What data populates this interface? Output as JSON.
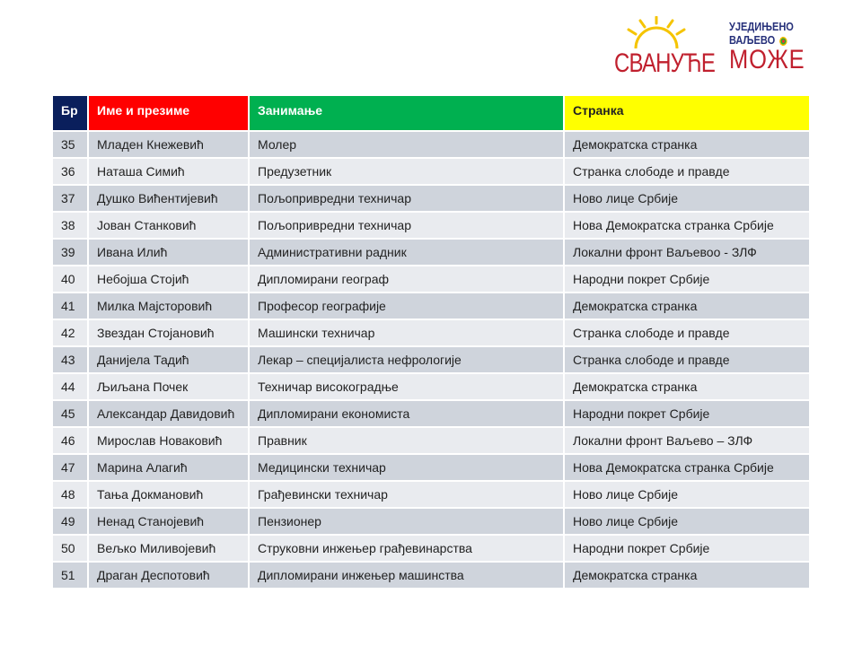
{
  "logos": {
    "left": "СВАНУЋЕ",
    "right_line1": "УЈЕДИЊЕНО",
    "right_line2": "ВАЉЕВО",
    "right_line3": "МОЖЕ"
  },
  "colors": {
    "header_num": "#0a1f5c",
    "header_name": "#ff0000",
    "header_job": "#00b050",
    "header_party": "#ffff00",
    "row_dark": "#cfd4dc",
    "row_light": "#e9ebef"
  },
  "table": {
    "headers": [
      "Бр",
      "Име и презиме",
      "Занимање",
      "Странка"
    ],
    "rows": [
      [
        "35",
        "Младен Кнежевић",
        "Молер",
        "Демократска странка"
      ],
      [
        "36",
        "Наташа Симић",
        "Предузетник",
        "Странка слободе и правде"
      ],
      [
        "37",
        "Душко Вићентијевић",
        "Пољопривредни техничар",
        "Ново лице Србије"
      ],
      [
        "38",
        "Јован Станковић",
        "Пољопривредни техничар",
        "Нова Демократска странка Србије"
      ],
      [
        "39",
        "Ивана Илић",
        "Административни радник",
        "Локални фронт Ваљевоо - ЗЛФ"
      ],
      [
        "40",
        "Небојша Стојић",
        "Дипломирани географ",
        "Народни покрет Србије"
      ],
      [
        "41",
        "Милка Мајсторовић",
        "Професор географије",
        "Демократска странка"
      ],
      [
        "42",
        "Звездан Стојановић",
        "Машински техничар",
        "Странка слободе и правде"
      ],
      [
        "43",
        "Данијела Тадић",
        "Лекар – специјалиста нефрологије",
        "Странка слободе и правде"
      ],
      [
        "44",
        "Љиљана Почек",
        "Техничар високоградње",
        "Демократска странка"
      ],
      [
        "45",
        "Александар Давидовић",
        "Дипломирани економиста",
        "Народни покрет Србије"
      ],
      [
        "46",
        "Мирослав Новаковић",
        "Правник",
        "Локални фронт Ваљево – ЗЛФ"
      ],
      [
        "47",
        "Марина Алагић",
        "Медицински техничар",
        "Нова Демократска странка Србије"
      ],
      [
        "48",
        "Тања Докмановић",
        "Грађевински техничар",
        "Ново лице Србије"
      ],
      [
        "49",
        "Ненад Станојевић",
        "Пензионер",
        "Ново лице Србије"
      ],
      [
        "50",
        "Вељко Миливојевић",
        "Струковни инжењер грађевинарства",
        "Народни покрет Србије"
      ],
      [
        "51",
        "Драган Деспотовић",
        "Дипломирани инжењер машинства",
        "Демократска странка"
      ]
    ]
  }
}
